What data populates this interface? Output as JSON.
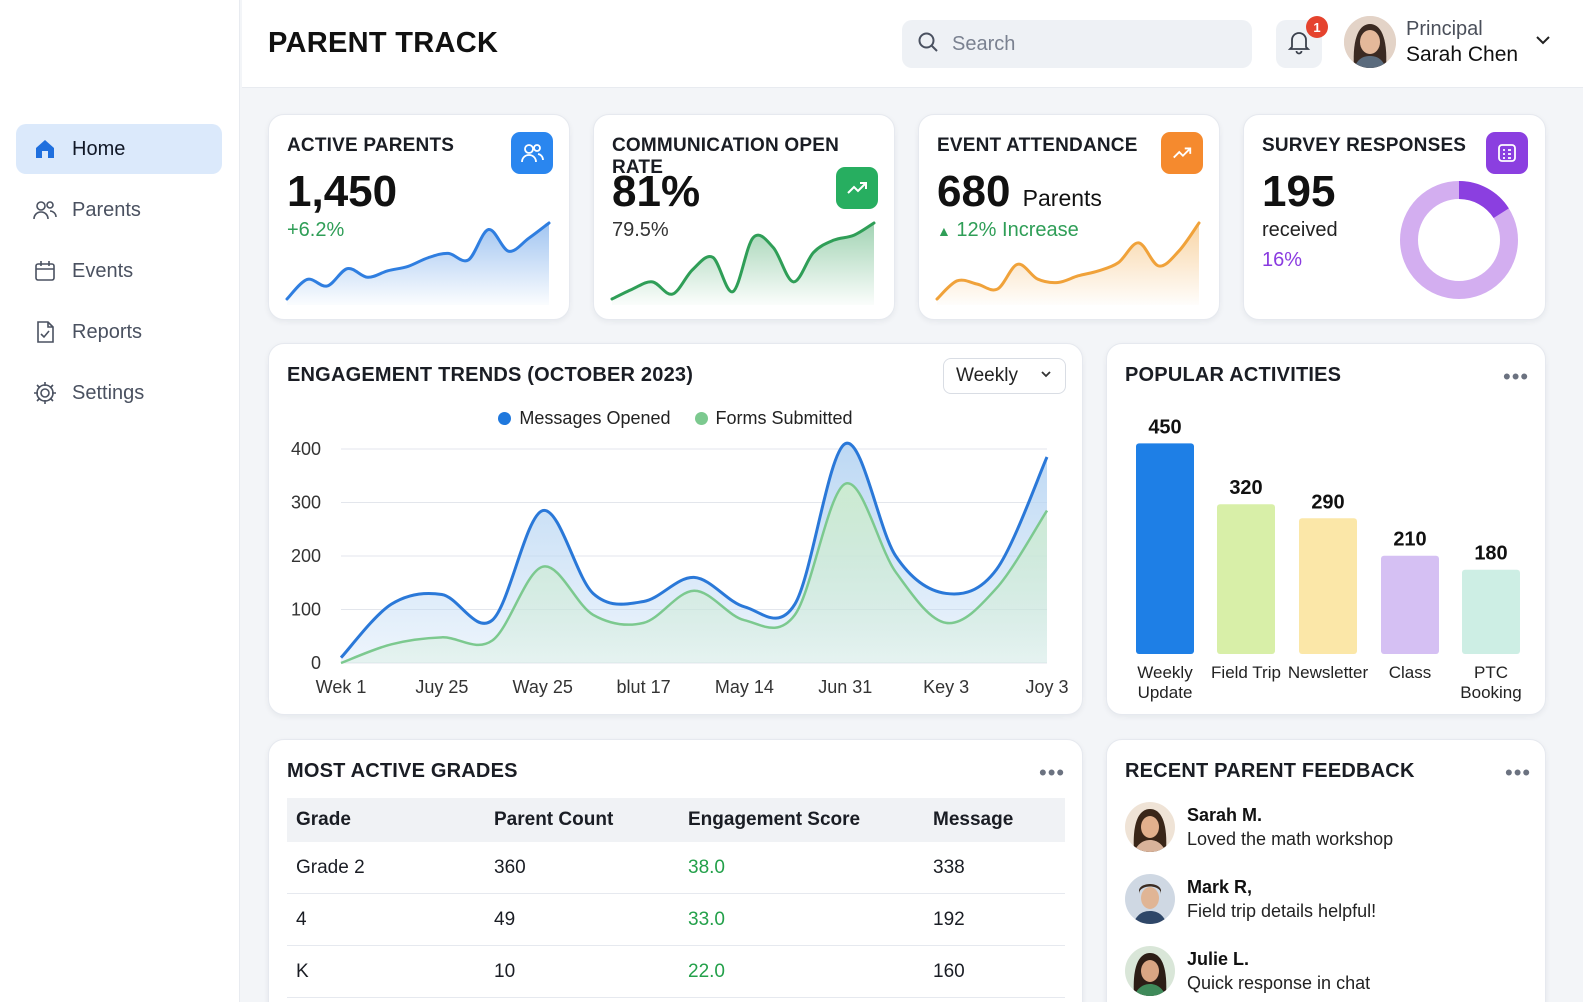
{
  "app": {
    "title": "PARENT TRACK"
  },
  "search": {
    "placeholder": "Search"
  },
  "notifications": {
    "count": "1"
  },
  "user": {
    "role": "Principal",
    "name": "Sarah Chen"
  },
  "sidebar": {
    "items": [
      {
        "label": "Home",
        "icon": "home-icon",
        "active": true
      },
      {
        "label": "Parents",
        "icon": "users-icon"
      },
      {
        "label": "Events",
        "icon": "calendar-icon"
      },
      {
        "label": "Reports",
        "icon": "document-check-icon"
      },
      {
        "label": "Settings",
        "icon": "gear-icon"
      }
    ]
  },
  "kpis": [
    {
      "title": "ACTIVE PARENTS",
      "value": "1,450",
      "sub": "+6.2%",
      "color": "#2f7ee0",
      "badge_color": "#2a86ef",
      "icon": "users-icon",
      "spark": [
        0,
        18,
        12,
        28,
        20,
        26,
        30,
        38,
        42,
        36,
        64,
        44,
        56,
        70
      ]
    },
    {
      "title": "COMMUNICATION OPEN RATE",
      "value": "81%",
      "sub": "79.5%",
      "color": "#2f9e57",
      "badge_color": "#27ae60",
      "icon": "trend-up-icon",
      "spark": [
        6,
        14,
        20,
        10,
        30,
        40,
        12,
        56,
        48,
        20,
        44,
        54,
        58,
        68
      ]
    },
    {
      "title": "EVENT ATTENDANCE",
      "value": "680",
      "value_unit": "Parents",
      "sub": "12% Increase",
      "color": "#f0a23a",
      "badge_color": "#f58a2e",
      "icon": "trend-up-icon",
      "spark": [
        0,
        22,
        18,
        12,
        42,
        24,
        20,
        28,
        34,
        44,
        68,
        40,
        58,
        92
      ]
    },
    {
      "title": "SURVEY RESPONSES",
      "value": "195",
      "sub": "received",
      "sub2": "16%",
      "color": "#8a3be0",
      "badge_color": "#8b3fe0",
      "icon": "survey-icon",
      "donut_fraction": 0.16,
      "donut_main": "#8b3fe0",
      "donut_rest": "#d3aef0"
    }
  ],
  "engagement": {
    "title": "ENGAGEMENT TRENDS (OCTOBER 2023)",
    "range": "Weekly"
  },
  "popular": {
    "title": "POPULAR ACTIVITIES"
  },
  "chart_data": [
    {
      "type": "area",
      "title": "ENGAGEMENT TRENDS (OCTOBER 2023)",
      "x": [
        "Wek 1",
        "Juy 25",
        "Way 25",
        "blut 17",
        "May 14",
        "Jun 31",
        "Key 3",
        "Joy 3"
      ],
      "ylim": [
        0,
        400
      ],
      "yticks": [
        0,
        100,
        200,
        300,
        400
      ],
      "grid": true,
      "legend": "top-center",
      "series": [
        {
          "name": "Messages Opened",
          "color": "#2a78d8",
          "fill": "#b9d6f3",
          "points": [
            [
              0,
              10
            ],
            [
              0.5,
              110
            ],
            [
              1,
              128
            ],
            [
              1.5,
              80
            ],
            [
              2,
              285
            ],
            [
              2.5,
              130
            ],
            [
              3,
              115
            ],
            [
              3.5,
              160
            ],
            [
              4,
              105
            ],
            [
              4.5,
              110
            ],
            [
              5,
              410
            ],
            [
              5.5,
              200
            ],
            [
              6,
              130
            ],
            [
              6.5,
              175
            ],
            [
              7,
              385
            ]
          ]
        },
        {
          "name": "Forms Submitted",
          "color": "#7cc98f",
          "fill": "#cdeccf",
          "points": [
            [
              0,
              0
            ],
            [
              0.5,
              35
            ],
            [
              1,
              48
            ],
            [
              1.5,
              42
            ],
            [
              2,
              180
            ],
            [
              2.5,
              90
            ],
            [
              3,
              75
            ],
            [
              3.5,
              135
            ],
            [
              4,
              80
            ],
            [
              4.5,
              90
            ],
            [
              5,
              335
            ],
            [
              5.5,
              170
            ],
            [
              6,
              75
            ],
            [
              6.5,
              140
            ],
            [
              7,
              285
            ]
          ]
        }
      ]
    },
    {
      "type": "bar",
      "title": "POPULAR ACTIVITIES",
      "categories": [
        "Weekly Update",
        "Field Trip",
        "Newsletter",
        "Class",
        "PTC Booking"
      ],
      "values": [
        450,
        320,
        290,
        210,
        180
      ],
      "colors": [
        "#1e7fe6",
        "#d8efa8",
        "#fbe7a8",
        "#d5c0f3",
        "#cdeee4"
      ],
      "ylim": [
        0,
        470
      ]
    }
  ],
  "grades": {
    "title": "MOST ACTIVE GRADES",
    "columns": [
      "Grade",
      "Parent Count",
      "Engagement Score",
      "Message"
    ],
    "rows": [
      [
        "Grade 2",
        "360",
        "38.0",
        "338"
      ],
      [
        "4",
        "49",
        "33.0",
        "192"
      ],
      [
        "K",
        "10",
        "22.0",
        "160"
      ]
    ]
  },
  "feedback": {
    "title": "RECENT PARENT FEEDBACK",
    "items": [
      {
        "name": "Sarah M.",
        "text": "Loved the math workshop"
      },
      {
        "name": "Mark R,",
        "text": "Field trip details helpful!"
      },
      {
        "name": "Julie L.",
        "text": "Quick response in chat"
      }
    ]
  }
}
